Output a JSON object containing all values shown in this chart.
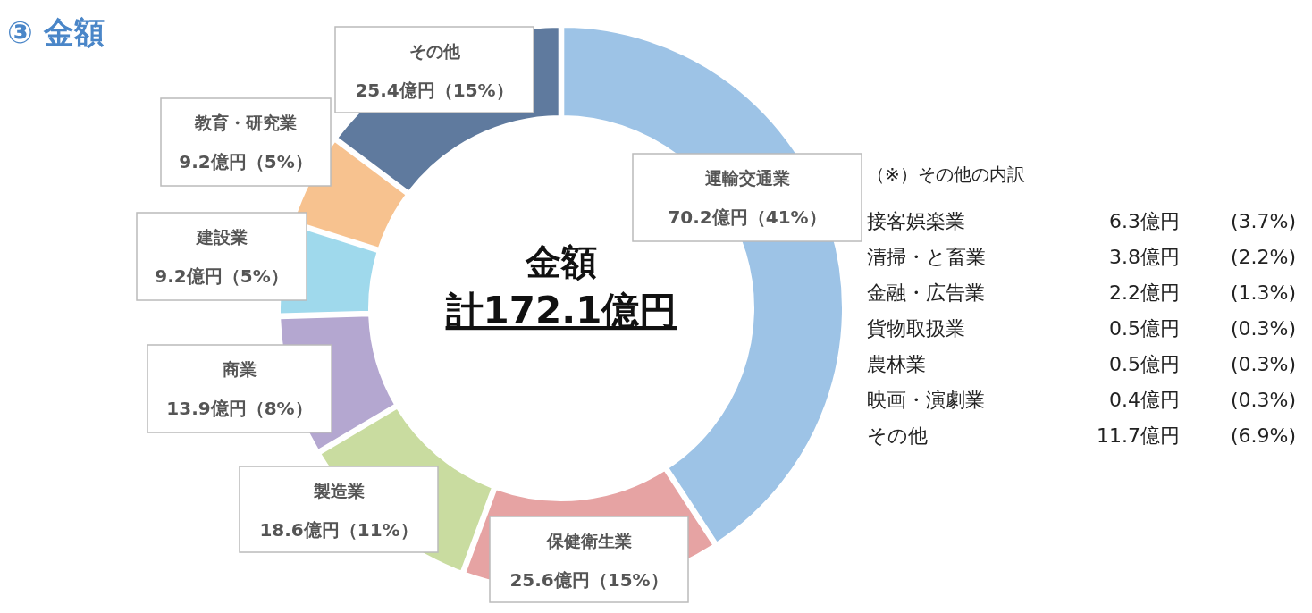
{
  "chart_data": {
    "type": "donut",
    "title": "③ 金額",
    "categories": [
      "運輸交通業",
      "保健衛生業",
      "製造業",
      "商業",
      "建設業",
      "教育・研究業",
      "その他"
    ],
    "values": [
      70.2,
      25.6,
      18.6,
      13.9,
      9.2,
      9.2,
      25.4
    ],
    "colors": [
      "#9dc3e6",
      "#e6a3a3",
      "#c9dca0",
      "#b4a7d0",
      "#9fd9ec",
      "#f7c28f",
      "#5f7a9e"
    ],
    "value_labels": [
      "70.2億円（41%）",
      "25.6億円（15%）",
      "18.6億円（11%）",
      "13.9億円（8%）",
      "9.2億円（5%）",
      "9.2億円（5%）",
      "25.4億円（15%）"
    ],
    "annotations": [
      "金額",
      "計172.1億円",
      "（※）その他の内訳",
      "接客娯楽業",
      "6.3億円",
      "(3.7%)",
      "清掃・と畜業",
      "3.8億円",
      "(2.2%)",
      "金融・広告業",
      "2.2億円",
      "(1.3%)",
      "貨物取扱業",
      "0.5億円",
      "(0.3%)",
      "農林業",
      "0.5億円",
      "(0.3%)",
      "映画・演劇業",
      "0.4億円",
      "(0.3%)",
      "その他",
      "11.7億円",
      "(6.9%)"
    ]
  }
}
